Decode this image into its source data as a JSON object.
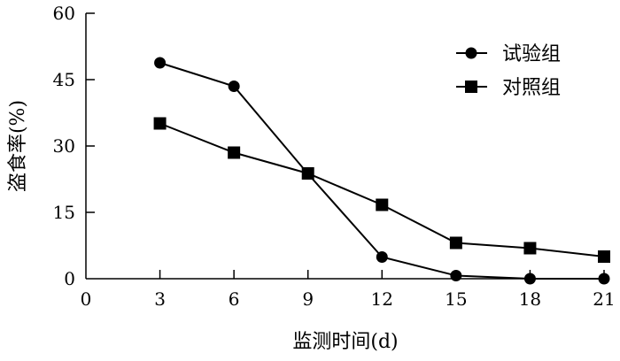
{
  "chart_data": {
    "type": "line",
    "xlabel": "监测时间(d)",
    "ylabel": "盗食率(%)",
    "xlim": [
      0,
      21
    ],
    "ylim": [
      0,
      60
    ],
    "xticks": [
      0,
      3,
      6,
      9,
      12,
      15,
      18,
      21
    ],
    "yticks": [
      0,
      15,
      30,
      45,
      60
    ],
    "grid": false,
    "legend": "top-right",
    "x": [
      3,
      6,
      9,
      12,
      15,
      18,
      21
    ],
    "series": [
      {
        "name": "试验组",
        "marker": "circle",
        "values": [
          48.8,
          43.5,
          23.7,
          4.9,
          0.7,
          0,
          0
        ]
      },
      {
        "name": "对照组",
        "marker": "square",
        "values": [
          35.1,
          28.5,
          23.8,
          16.7,
          8.1,
          6.9,
          5.0
        ]
      }
    ]
  }
}
